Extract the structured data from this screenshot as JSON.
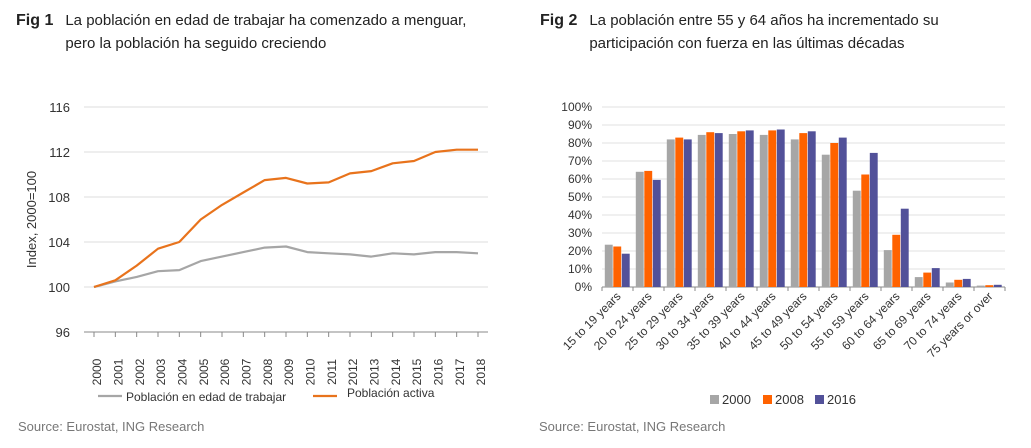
{
  "fig1": {
    "label": "Fig 1",
    "title": "La población en edad de trabajar ha comenzado a menguar, pero la población ha seguido creciendo",
    "source": "Source: Eurostat, ING Research"
  },
  "fig2": {
    "label": "Fig 2",
    "title": "La población entre 55 y 64 años ha incrementado su participación con fuerza en las últimas décadas",
    "source": "Source: Eurostat, ING Research"
  },
  "chart_data": [
    {
      "type": "line",
      "ylabel": "Index, 2000=100",
      "ylim": [
        96,
        116
      ],
      "yticks": [
        96,
        100,
        104,
        108,
        112,
        116
      ],
      "grid": true,
      "legend_position": "bottom",
      "x": [
        "2000",
        "2001",
        "2002",
        "2003",
        "2004",
        "2005",
        "2006",
        "2007",
        "2008",
        "2009",
        "2010",
        "2011",
        "2012",
        "2013",
        "2014",
        "2015",
        "2016",
        "2017",
        "2018"
      ],
      "series": [
        {
          "name": "Población en edad de trabajar",
          "color": "#a6a6a6",
          "values": [
            100.0,
            100.5,
            100.9,
            101.4,
            101.5,
            102.3,
            102.7,
            103.1,
            103.5,
            103.6,
            103.1,
            103.0,
            102.9,
            102.7,
            103.0,
            102.9,
            103.1,
            103.1,
            103.0
          ]
        },
        {
          "name": "Población activa",
          "color": "#e8731c",
          "values": [
            100.0,
            100.6,
            101.9,
            103.4,
            104.0,
            106.0,
            107.3,
            108.4,
            109.5,
            109.7,
            109.2,
            109.3,
            110.1,
            110.3,
            111.0,
            111.2,
            112.0,
            112.2,
            112.2
          ]
        }
      ]
    },
    {
      "type": "bar",
      "ylim": [
        0,
        100
      ],
      "yticks": [
        "0%",
        "10%",
        "20%",
        "30%",
        "40%",
        "50%",
        "60%",
        "70%",
        "80%",
        "90%",
        "100%"
      ],
      "grid": true,
      "legend_position": "bottom",
      "categories": [
        "15 to 19 years",
        "20 to 24 years",
        "25 to 29 years",
        "30 to 34 years",
        "35 to 39 years",
        "40 to 44 years",
        "45 to 49 years",
        "50 to 54 years",
        "55 to 59 years",
        "60 to 64 years",
        "65 to 69 years",
        "70 to 74 years",
        "75 years or over"
      ],
      "series": [
        {
          "name": "2000",
          "color": "#a6a6a6",
          "values": [
            23.5,
            64,
            82,
            84.5,
            85,
            84.5,
            82,
            73.5,
            53.5,
            20.5,
            5.5,
            2.5,
            0.8
          ]
        },
        {
          "name": "2008",
          "color": "#ff6200",
          "values": [
            22.5,
            64.5,
            83,
            86,
            86.5,
            87,
            85.5,
            80,
            62.5,
            29,
            8,
            4,
            1
          ]
        },
        {
          "name": "2016",
          "color": "#525199",
          "values": [
            18.5,
            59.5,
            82,
            85.5,
            87,
            87.5,
            86.5,
            83,
            74.5,
            43.5,
            10.5,
            4.5,
            1.2
          ]
        }
      ]
    }
  ]
}
